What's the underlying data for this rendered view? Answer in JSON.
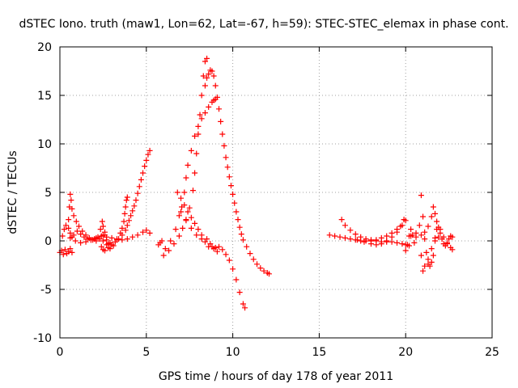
{
  "chart_data": {
    "type": "scatter",
    "title": "dSTEC Iono. truth (maw1, Lon=62, Lat=-67, h=59): STEC-STEC_elemax in phase cont.",
    "xlabel": "GPS time / hours of day 178 of year 2011",
    "ylabel": "dSTEC  / TECUs",
    "xlim": [
      0,
      25
    ],
    "ylim": [
      -10,
      20
    ],
    "x_ticks": [
      0,
      5,
      10,
      15,
      20,
      25
    ],
    "y_ticks": [
      -10,
      -5,
      0,
      5,
      10,
      15,
      20
    ],
    "grid": true,
    "marker": "+",
    "colors": {
      "series": "#ff0000",
      "grid": "#a0a0a0",
      "axis": "#000000"
    },
    "series": [
      {
        "points": [
          [
            0.0,
            -1.2
          ],
          [
            0.1,
            -1.0
          ],
          [
            0.2,
            -1.4
          ],
          [
            0.3,
            -0.9
          ],
          [
            0.4,
            -1.3
          ],
          [
            0.5,
            -1.1
          ],
          [
            0.6,
            -0.8
          ],
          [
            0.7,
            -1.2
          ]
        ]
      },
      {
        "points": [
          [
            0.15,
            0.5
          ],
          [
            0.25,
            1.2
          ],
          [
            0.35,
            1.6
          ],
          [
            0.5,
            1.3
          ],
          [
            0.6,
            0.8
          ],
          [
            0.7,
            0.4
          ]
        ]
      },
      {
        "points": [
          [
            0.5,
            2.2
          ],
          [
            0.55,
            3.5
          ],
          [
            0.6,
            4.8
          ],
          [
            0.65,
            4.2
          ],
          [
            0.7,
            3.3
          ],
          [
            0.8,
            2.6
          ],
          [
            0.95,
            2.0
          ],
          [
            1.1,
            1.5
          ],
          [
            1.3,
            1.0
          ],
          [
            1.5,
            0.6
          ],
          [
            1.7,
            0.3
          ],
          [
            1.9,
            0.1
          ],
          [
            2.1,
            0.0
          ],
          [
            2.3,
            0.2
          ],
          [
            2.5,
            0.6
          ],
          [
            2.6,
            0.9
          ]
        ]
      },
      {
        "points": [
          [
            0.8,
            0.6
          ],
          [
            1.0,
            1.0
          ],
          [
            1.2,
            0.7
          ],
          [
            1.4,
            0.4
          ],
          [
            1.6,
            0.2
          ],
          [
            1.8,
            0.1
          ],
          [
            2.0,
            0.2
          ],
          [
            2.2,
            0.4
          ],
          [
            2.35,
            1.2
          ],
          [
            2.45,
            2.0
          ],
          [
            2.5,
            1.5
          ],
          [
            2.6,
            0.6
          ],
          [
            2.7,
            0.1
          ],
          [
            2.8,
            -0.3
          ],
          [
            2.9,
            -0.2
          ]
        ]
      },
      {
        "points": [
          [
            0.6,
            0.3
          ],
          [
            0.9,
            0.0
          ],
          [
            1.2,
            -0.2
          ],
          [
            1.5,
            -0.1
          ],
          [
            1.8,
            0.1
          ],
          [
            2.1,
            0.3
          ],
          [
            2.4,
            0.5
          ],
          [
            2.7,
            0.4
          ],
          [
            3.0,
            0.3
          ],
          [
            3.3,
            0.2
          ],
          [
            3.6,
            0.1
          ],
          [
            3.9,
            0.2
          ],
          [
            4.2,
            0.4
          ],
          [
            4.5,
            0.6
          ],
          [
            4.8,
            0.9
          ],
          [
            5.0,
            1.1
          ],
          [
            5.2,
            0.8
          ]
        ]
      },
      {
        "points": [
          [
            2.4,
            -0.6
          ],
          [
            2.5,
            -0.9
          ],
          [
            2.6,
            -1.0
          ],
          [
            2.8,
            -0.7
          ],
          [
            3.0,
            -0.4
          ],
          [
            3.2,
            -0.1
          ],
          [
            3.4,
            0.2
          ],
          [
            3.6,
            0.6
          ],
          [
            3.8,
            1.1
          ],
          [
            3.9,
            1.6
          ],
          [
            4.0,
            2.1
          ],
          [
            4.1,
            2.6
          ],
          [
            4.2,
            3.1
          ],
          [
            4.3,
            3.6
          ],
          [
            4.4,
            4.2
          ],
          [
            4.5,
            4.9
          ],
          [
            4.6,
            5.6
          ],
          [
            4.7,
            6.3
          ],
          [
            4.8,
            7.0
          ],
          [
            4.9,
            7.7
          ],
          [
            5.0,
            8.3
          ],
          [
            5.1,
            8.9
          ],
          [
            5.2,
            9.3
          ]
        ]
      },
      {
        "points": [
          [
            2.5,
            0.0
          ],
          [
            2.7,
            -0.4
          ],
          [
            2.9,
            -0.8
          ],
          [
            3.1,
            -0.5
          ],
          [
            3.3,
            0.1
          ],
          [
            3.5,
            0.8
          ],
          [
            3.6,
            1.3
          ],
          [
            3.7,
            2.0
          ],
          [
            3.75,
            2.8
          ],
          [
            3.8,
            3.5
          ],
          [
            3.85,
            4.2
          ],
          [
            3.9,
            4.5
          ]
        ]
      },
      {
        "points": [
          [
            5.7,
            -0.4
          ],
          [
            5.8,
            -0.2
          ],
          [
            5.9,
            0.0
          ]
        ]
      },
      {
        "points": [
          [
            6.0,
            -1.5
          ],
          [
            6.3,
            -1.0
          ],
          [
            6.6,
            -0.3
          ],
          [
            6.9,
            0.5
          ],
          [
            7.1,
            1.3
          ],
          [
            7.3,
            2.2
          ],
          [
            7.5,
            3.4
          ],
          [
            7.7,
            5.2
          ],
          [
            7.8,
            7.0
          ],
          [
            7.9,
            9.0
          ],
          [
            8.0,
            11.0
          ],
          [
            8.1,
            13.0
          ],
          [
            8.2,
            15.0
          ],
          [
            8.3,
            17.0
          ],
          [
            8.4,
            18.5
          ],
          [
            8.5,
            18.8
          ]
        ]
      },
      {
        "points": [
          [
            6.1,
            -0.8
          ],
          [
            6.4,
            0.0
          ],
          [
            6.7,
            1.2
          ],
          [
            6.9,
            2.6
          ],
          [
            7.05,
            3.5
          ],
          [
            7.2,
            5.0
          ],
          [
            7.3,
            6.5
          ],
          [
            7.4,
            7.8
          ],
          [
            7.6,
            9.3
          ],
          [
            7.8,
            10.8
          ],
          [
            8.0,
            11.8
          ],
          [
            8.2,
            12.6
          ],
          [
            8.4,
            13.2
          ],
          [
            8.6,
            13.8
          ],
          [
            8.8,
            14.3
          ],
          [
            8.9,
            14.5
          ],
          [
            9.0,
            14.6
          ]
        ]
      },
      {
        "points": [
          [
            6.8,
            5.0
          ],
          [
            7.0,
            4.4
          ],
          [
            7.2,
            3.7
          ],
          [
            7.4,
            3.0
          ],
          [
            7.6,
            2.4
          ],
          [
            7.8,
            1.8
          ],
          [
            8.0,
            1.2
          ],
          [
            8.2,
            0.6
          ],
          [
            8.4,
            -0.1
          ],
          [
            8.6,
            -0.6
          ],
          [
            8.8,
            -0.6
          ],
          [
            9.0,
            -0.7
          ],
          [
            9.2,
            -0.6
          ],
          [
            9.4,
            -0.9
          ],
          [
            9.6,
            -1.4
          ],
          [
            9.8,
            -2.0
          ],
          [
            10.0,
            -2.9
          ],
          [
            10.2,
            -4.0
          ],
          [
            10.4,
            -5.3
          ],
          [
            10.6,
            -6.5
          ],
          [
            10.7,
            -6.9
          ]
        ]
      },
      {
        "points": [
          [
            7.0,
            3.0
          ],
          [
            7.3,
            2.1
          ],
          [
            7.6,
            1.3
          ],
          [
            7.9,
            0.6
          ],
          [
            8.2,
            0.2
          ],
          [
            8.5,
            0.2
          ],
          [
            8.7,
            -0.3
          ],
          [
            8.9,
            -0.8
          ],
          [
            9.1,
            -1.1
          ]
        ]
      },
      {
        "points": [
          [
            8.4,
            16.0
          ],
          [
            8.5,
            16.8
          ],
          [
            8.6,
            17.2
          ],
          [
            8.7,
            17.6
          ],
          [
            8.8,
            17.5
          ],
          [
            8.9,
            17.0
          ],
          [
            9.0,
            16.0
          ],
          [
            9.1,
            14.8
          ],
          [
            9.2,
            13.6
          ],
          [
            9.3,
            12.3
          ],
          [
            9.4,
            11.0
          ],
          [
            9.5,
            9.8
          ],
          [
            9.6,
            8.6
          ],
          [
            9.7,
            7.6
          ],
          [
            9.8,
            6.6
          ],
          [
            9.9,
            5.7
          ],
          [
            10.0,
            4.8
          ],
          [
            10.1,
            3.9
          ],
          [
            10.2,
            3.0
          ],
          [
            10.3,
            2.2
          ],
          [
            10.4,
            1.4
          ],
          [
            10.5,
            0.7
          ],
          [
            10.6,
            0.1
          ],
          [
            10.8,
            -0.6
          ],
          [
            11.0,
            -1.3
          ],
          [
            11.2,
            -1.9
          ],
          [
            11.4,
            -2.4
          ],
          [
            11.6,
            -2.8
          ],
          [
            11.8,
            -3.1
          ],
          [
            12.0,
            -3.3
          ],
          [
            12.1,
            -3.4
          ]
        ]
      },
      {
        "points": [
          [
            15.6,
            0.6
          ],
          [
            15.9,
            0.5
          ],
          [
            16.2,
            0.4
          ],
          [
            16.5,
            0.3
          ],
          [
            16.8,
            0.2
          ],
          [
            17.1,
            0.1
          ],
          [
            17.4,
            0.0
          ],
          [
            17.7,
            0.0
          ],
          [
            18.0,
            0.0
          ],
          [
            18.3,
            0.0
          ],
          [
            18.6,
            -0.1
          ],
          [
            18.9,
            -0.1
          ],
          [
            19.2,
            -0.1
          ],
          [
            19.5,
            -0.2
          ],
          [
            19.8,
            -0.3
          ],
          [
            20.0,
            -0.4
          ],
          [
            20.2,
            -0.5
          ]
        ]
      },
      {
        "points": [
          [
            16.3,
            2.2
          ],
          [
            16.5,
            1.6
          ],
          [
            16.8,
            1.1
          ],
          [
            17.1,
            0.7
          ],
          [
            17.4,
            0.4
          ],
          [
            17.7,
            0.2
          ],
          [
            18.0,
            0.1
          ],
          [
            18.3,
            0.1
          ],
          [
            18.6,
            0.3
          ],
          [
            18.9,
            0.5
          ],
          [
            19.2,
            0.8
          ],
          [
            19.5,
            1.2
          ],
          [
            19.8,
            1.6
          ],
          [
            20.0,
            2.1
          ]
        ]
      },
      {
        "points": [
          [
            17.2,
            0.1
          ],
          [
            17.6,
            -0.1
          ],
          [
            18.0,
            -0.3
          ],
          [
            18.3,
            -0.4
          ],
          [
            18.6,
            -0.3
          ],
          [
            18.9,
            0.0
          ],
          [
            19.2,
            0.4
          ],
          [
            19.5,
            0.9
          ],
          [
            19.7,
            1.5
          ],
          [
            19.9,
            2.2
          ]
        ]
      },
      {
        "points": [
          [
            20.0,
            -1.0
          ],
          [
            20.1,
            -0.4
          ],
          [
            20.2,
            0.5
          ],
          [
            20.3,
            1.2
          ],
          [
            20.4,
            0.6
          ],
          [
            20.5,
            -0.2
          ],
          [
            20.6,
            0.4
          ],
          [
            20.8,
            1.6
          ],
          [
            20.9,
            4.7
          ],
          [
            21.0,
            2.5
          ],
          [
            21.1,
            0.2
          ],
          [
            21.2,
            -1.2
          ],
          [
            21.3,
            -2.4
          ],
          [
            21.4,
            -2.6
          ],
          [
            21.5,
            -2.2
          ],
          [
            21.6,
            -1.5
          ],
          [
            21.7,
            0.3
          ],
          [
            21.8,
            1.2
          ],
          [
            21.9,
            1.4
          ],
          [
            22.0,
            0.8
          ],
          [
            22.1,
            0.2
          ],
          [
            22.2,
            -0.3
          ],
          [
            22.3,
            -0.5
          ],
          [
            22.4,
            -0.2
          ],
          [
            22.5,
            0.2
          ],
          [
            22.6,
            0.5
          ],
          [
            22.7,
            0.4
          ]
        ]
      },
      {
        "points": [
          [
            20.3,
            0.5
          ],
          [
            20.6,
            0.8
          ],
          [
            20.9,
            0.6
          ],
          [
            21.1,
            0.9
          ],
          [
            21.3,
            1.5
          ],
          [
            21.5,
            2.5
          ],
          [
            21.6,
            3.5
          ],
          [
            21.7,
            2.8
          ],
          [
            21.8,
            2.0
          ],
          [
            22.0,
            1.2
          ],
          [
            22.2,
            0.4
          ],
          [
            22.4,
            -0.3
          ],
          [
            22.6,
            -0.7
          ],
          [
            22.7,
            -0.9
          ]
        ]
      },
      {
        "points": [
          [
            20.9,
            -1.5
          ],
          [
            21.0,
            -3.1
          ],
          [
            21.1,
            -2.6
          ],
          [
            21.3,
            -1.9
          ],
          [
            21.5,
            -0.8
          ],
          [
            21.7,
            0.0
          ],
          [
            21.9,
            0.4
          ]
        ]
      }
    ]
  }
}
